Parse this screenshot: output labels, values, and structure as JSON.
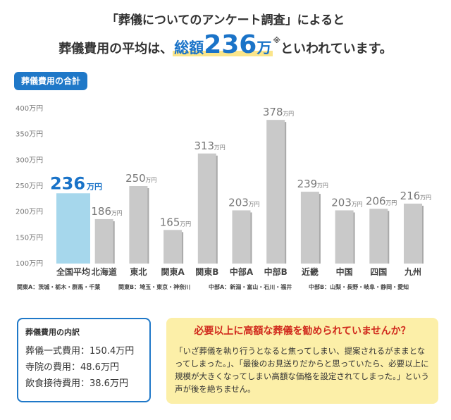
{
  "header": {
    "line1": "「葬儀についてのアンケート調査」によると",
    "line2_prefix": "葬儀費用の平均は、",
    "line2_label": "総額",
    "line2_number": "236",
    "line2_unit": "万",
    "line2_note": "※",
    "line2_suffix": "といわれています。"
  },
  "section_badge": "葬儀費用の合計",
  "chart_data": {
    "type": "bar",
    "title": "葬儀費用の合計",
    "categories": [
      "全国平均",
      "北海道",
      "東北",
      "関東A",
      "関東B",
      "中部A",
      "中部B",
      "近畿",
      "中国",
      "四国",
      "九州"
    ],
    "values": [
      236,
      186,
      250,
      165,
      313,
      203,
      378,
      239,
      203,
      206,
      216
    ],
    "value_labels": [
      "236",
      "186",
      "250",
      "165",
      "313",
      "203",
      "378",
      "239",
      "203",
      "206",
      "216"
    ],
    "value_unit": "万円",
    "y_ticks": [
      "100万円",
      "150万円",
      "200万円",
      "250万円",
      "300万円",
      "350万円",
      "400万円"
    ],
    "y_tick_values": [
      100,
      150,
      200,
      250,
      300,
      350,
      400
    ],
    "ylim": [
      100,
      400
    ],
    "highlight_index": 0,
    "colors": {
      "highlight": "#a6d7ec",
      "highlight_label": "#1a73c8",
      "bar": "#c9c9c9",
      "bar_side": "#a9a9a9",
      "label": "#777777"
    },
    "grid": false
  },
  "region_notes": [
    "関東A：茨城・栃木・群馬・千葉",
    "関東B：埼玉・東京・神奈川",
    "中部A：新潟・富山・石川・福井",
    "中部B：山梨・長野・岐阜・静岡・愛知"
  ],
  "breakdown": {
    "title": "葬儀費用の内訳",
    "items": [
      "葬儀一式費用：150.4万円",
      "寺院の費用：48.6万円",
      "飲食接待費用：38.6万円"
    ]
  },
  "warning": {
    "title": "必要以上に高額な葬儀を勧められていませんか？",
    "body": "「いざ葬儀を執り行うとなると焦ってしまい、提案されるがままとなってしまった。」、「最後のお見送りだからと思っていたら、必要以上に規模が大きくなってしまい高額な価格を設定されてしまった。」という声が後を絶ちません。"
  }
}
